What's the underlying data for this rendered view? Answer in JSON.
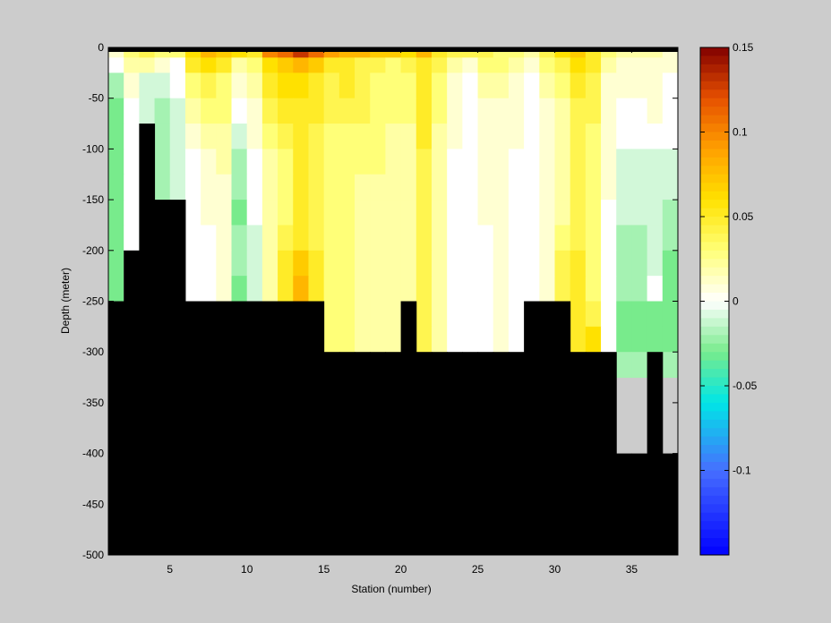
{
  "chart_data": {
    "type": "heatmap",
    "xlabel": "Station (number)",
    "ylabel": "Depth (meter)",
    "xlim": [
      1,
      38
    ],
    "ylim": [
      -500,
      0
    ],
    "x_ticks": [
      5,
      10,
      15,
      20,
      25,
      30,
      35
    ],
    "y_ticks": [
      0,
      -50,
      -100,
      -150,
      -200,
      -250,
      -300,
      -350,
      -400,
      -450,
      -500
    ],
    "colorbar": {
      "range": [
        -0.15,
        0.15
      ],
      "ticks": [
        0.15,
        0.1,
        0.05,
        0,
        -0.05,
        -0.1
      ],
      "tick_labels": [
        "0.15",
        "0.1",
        "0.05",
        "0",
        "-0.05",
        "-0.1"
      ],
      "colormap": "jet-white-center"
    },
    "stations": [
      1,
      2,
      3,
      4,
      5,
      6,
      7,
      8,
      9,
      10,
      11,
      12,
      13,
      14,
      15,
      16,
      17,
      18,
      19,
      20,
      21,
      22,
      23,
      24,
      25,
      26,
      27,
      28,
      29,
      30,
      31,
      32,
      33,
      34,
      35,
      36,
      37
    ],
    "depth_bins_top": [
      0,
      -10,
      -25,
      -50,
      -75,
      -100,
      -125,
      -150,
      -175,
      -200,
      -225,
      -250,
      -275,
      -300
    ],
    "bottom_depth": [
      -250,
      -200,
      -75,
      -150,
      -150,
      -250,
      -250,
      -250,
      -250,
      -250,
      -250,
      -250,
      -250,
      -250,
      -300,
      -300,
      -300,
      -300,
      -300,
      -250,
      -300,
      -300,
      -300,
      -300,
      -300,
      -300,
      -300,
      -250,
      -250,
      -250,
      -300,
      -300,
      -300,
      -400,
      -400,
      -300,
      -400
    ],
    "values": [
      [
        0.01,
        0.03,
        0.04,
        0.03,
        0.03,
        0.06,
        0.08,
        0.07,
        0.06,
        0.05,
        0.1,
        0.11,
        0.13,
        0.11,
        0.09,
        0.08,
        0.08,
        0.07,
        0.07,
        0.06,
        0.08,
        0.05,
        0.04,
        0.04,
        0.04,
        0.03,
        0.03,
        0.02,
        0.04,
        0.06,
        0.07,
        0.05,
        0.03,
        0.02,
        0.02,
        0.02,
        0.01
      ],
      [
        0.0,
        0.02,
        0.02,
        0.01,
        0.0,
        0.05,
        0.06,
        0.05,
        0.02,
        0.03,
        0.06,
        0.07,
        0.08,
        0.07,
        0.05,
        0.05,
        0.04,
        0.04,
        0.03,
        0.04,
        0.05,
        0.04,
        0.02,
        0.01,
        0.03,
        0.03,
        0.02,
        0.01,
        0.03,
        0.04,
        0.06,
        0.05,
        0.02,
        0.01,
        0.01,
        0.01,
        0.01
      ],
      [
        -0.02,
        0.01,
        -0.01,
        -0.01,
        0.0,
        0.03,
        0.04,
        0.03,
        0.01,
        0.02,
        0.05,
        0.06,
        0.06,
        0.05,
        0.04,
        0.05,
        0.04,
        0.03,
        0.03,
        0.03,
        0.05,
        0.03,
        0.01,
        0.0,
        0.02,
        0.02,
        0.01,
        0.0,
        0.02,
        0.03,
        0.05,
        0.04,
        0.01,
        0.01,
        0.01,
        0.01,
        0.0
      ],
      [
        -0.03,
        0.0,
        -0.01,
        -0.02,
        -0.01,
        0.02,
        0.03,
        0.03,
        0.0,
        0.01,
        0.04,
        0.05,
        0.05,
        0.05,
        0.04,
        0.04,
        0.04,
        0.03,
        0.03,
        0.03,
        0.05,
        0.03,
        0.01,
        0.0,
        0.01,
        0.01,
        0.01,
        0.0,
        0.01,
        0.02,
        0.04,
        0.04,
        0.01,
        0.0,
        0.0,
        0.01,
        0.0
      ],
      [
        -0.03,
        0.0,
        -0.01,
        -0.02,
        -0.01,
        0.01,
        0.02,
        0.02,
        -0.01,
        0.01,
        0.03,
        0.04,
        0.05,
        0.04,
        0.03,
        0.03,
        0.03,
        0.03,
        0.02,
        0.02,
        0.05,
        0.02,
        0.01,
        0.0,
        0.01,
        0.01,
        0.01,
        0.0,
        0.01,
        0.02,
        0.04,
        0.03,
        0.01,
        0.0,
        0.0,
        0.0,
        0.0
      ],
      [
        -0.03,
        0.0,
        -0.01,
        -0.02,
        -0.01,
        0.0,
        0.01,
        0.02,
        -0.02,
        0.0,
        0.02,
        0.03,
        0.05,
        0.04,
        0.03,
        0.03,
        0.03,
        0.03,
        0.02,
        0.02,
        0.04,
        0.02,
        0.0,
        0.0,
        0.01,
        0.01,
        0.0,
        0.0,
        0.01,
        0.02,
        0.04,
        0.03,
        0.01,
        -0.01,
        -0.01,
        -0.01,
        -0.01
      ],
      [
        -0.03,
        0.0,
        -0.01,
        -0.02,
        -0.01,
        0.0,
        0.01,
        0.01,
        -0.02,
        0.0,
        0.02,
        0.03,
        0.05,
        0.04,
        0.03,
        0.03,
        0.02,
        0.02,
        0.02,
        0.02,
        0.04,
        0.02,
        0.0,
        0.0,
        0.01,
        0.01,
        0.0,
        0.0,
        0.01,
        0.02,
        0.04,
        0.03,
        0.01,
        -0.01,
        -0.01,
        -0.01,
        -0.01
      ],
      [
        -0.03,
        0.0,
        -0.01,
        -0.02,
        -0.01,
        0.0,
        0.01,
        0.01,
        -0.03,
        0.0,
        0.02,
        0.03,
        0.05,
        0.04,
        0.03,
        0.03,
        0.02,
        0.02,
        0.02,
        0.02,
        0.04,
        0.02,
        0.0,
        0.0,
        0.01,
        0.01,
        0.0,
        0.0,
        0.01,
        0.02,
        0.04,
        0.03,
        0.0,
        -0.01,
        -0.01,
        -0.01,
        -0.02
      ],
      [
        -0.03,
        0.0,
        -0.01,
        -0.02,
        -0.01,
        0.0,
        0.0,
        0.01,
        -0.02,
        -0.01,
        0.02,
        0.04,
        0.05,
        0.04,
        0.03,
        0.03,
        0.02,
        0.02,
        0.02,
        0.02,
        0.04,
        0.02,
        0.0,
        0.0,
        0.0,
        0.01,
        0.0,
        0.0,
        0.01,
        0.03,
        0.04,
        0.03,
        0.0,
        -0.02,
        -0.02,
        -0.01,
        -0.02
      ],
      [
        -0.03,
        0.0,
        -0.01,
        -0.02,
        -0.01,
        0.0,
        0.0,
        0.01,
        -0.02,
        -0.01,
        0.02,
        0.05,
        0.07,
        0.05,
        0.03,
        0.03,
        0.02,
        0.02,
        0.02,
        0.02,
        0.04,
        0.02,
        0.0,
        0.0,
        0.0,
        0.01,
        0.0,
        0.0,
        0.01,
        0.04,
        0.05,
        0.03,
        0.0,
        -0.02,
        -0.02,
        -0.01,
        -0.03
      ],
      [
        -0.03,
        0.0,
        -0.01,
        -0.02,
        -0.01,
        0.0,
        0.0,
        0.01,
        -0.03,
        -0.01,
        0.02,
        0.05,
        0.08,
        0.05,
        0.03,
        0.03,
        0.02,
        0.02,
        0.02,
        0.02,
        0.04,
        0.02,
        0.0,
        0.0,
        0.0,
        0.01,
        0.0,
        0.0,
        0.01,
        0.04,
        0.05,
        0.03,
        0.0,
        -0.02,
        -0.02,
        0.0,
        -0.03
      ],
      [
        -0.03,
        0.0,
        -0.01,
        -0.02,
        -0.01,
        0.0,
        0.0,
        0.01,
        -0.03,
        -0.01,
        0.02,
        0.05,
        0.06,
        0.05,
        0.03,
        0.03,
        0.02,
        0.02,
        0.02,
        0.02,
        0.04,
        0.02,
        0.0,
        0.0,
        0.0,
        0.01,
        0.0,
        0.0,
        0.01,
        0.04,
        0.05,
        0.04,
        0.0,
        -0.03,
        -0.03,
        -0.03,
        -0.03
      ],
      [
        -0.03,
        0.0,
        -0.01,
        -0.02,
        -0.01,
        0.0,
        0.0,
        0.01,
        -0.03,
        -0.01,
        0.02,
        0.05,
        0.06,
        0.05,
        0.03,
        0.03,
        0.02,
        0.02,
        0.02,
        0.02,
        0.04,
        0.02,
        0.0,
        0.0,
        0.0,
        0.01,
        0.0,
        0.0,
        0.01,
        0.04,
        0.05,
        0.06,
        0.0,
        -0.03,
        -0.03,
        -0.03,
        -0.03
      ],
      [
        -0.03,
        0.0,
        -0.01,
        -0.02,
        -0.01,
        0.0,
        0.0,
        0.01,
        -0.03,
        -0.01,
        0.02,
        0.05,
        0.06,
        0.05,
        0.03,
        0.03,
        0.02,
        0.02,
        0.02,
        0.02,
        0.04,
        0.02,
        0.0,
        0.0,
        0.0,
        0.01,
        0.0,
        0.0,
        0.01,
        0.04,
        0.05,
        0.04,
        0.0,
        -0.02,
        -0.02,
        -0.02,
        -0.02
      ]
    ]
  }
}
